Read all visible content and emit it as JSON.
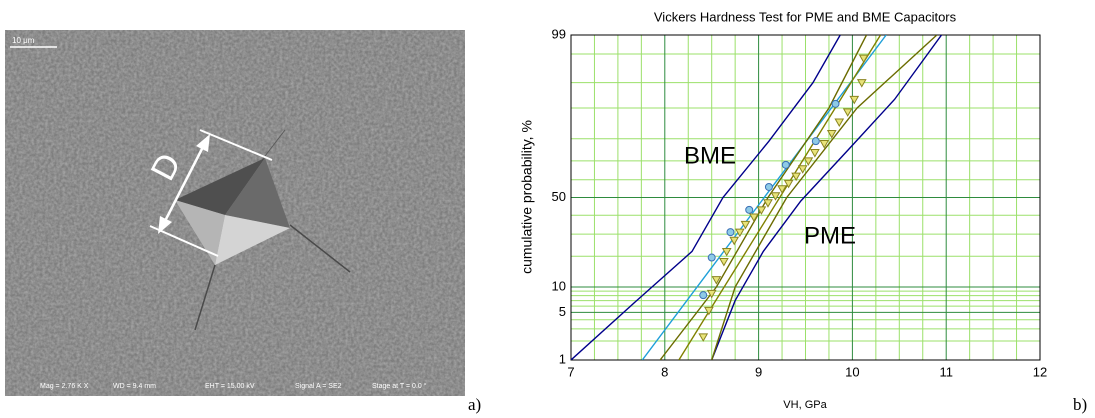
{
  "image": {
    "scale_bar": "10 μm",
    "info": [
      "Mag = 2.76 K X",
      "WD = 9.4 mm",
      "EHT = 15.00 kV",
      "Signal A = SE2",
      "Stage at T = 0.0 °"
    ],
    "dimension_label": "D",
    "panel_label": "a)"
  },
  "chart_data": {
    "type": "probability",
    "panel_label": "b)",
    "title": "Vickers Hardness Test for PME and BME Capacitors",
    "x_label": "VH, GPa",
    "y_label": "cumulative probability, %",
    "xlim": [
      7,
      12
    ],
    "xticks": [
      7,
      8,
      9,
      10,
      11,
      12
    ],
    "xminor": [
      7.25,
      7.5,
      7.75,
      8.25,
      8.5,
      8.75,
      9.25,
      9.5,
      9.75,
      10.25,
      10.5,
      10.75,
      11.25,
      11.5,
      11.75
    ],
    "ylim": [
      1,
      99
    ],
    "yticks": [
      1,
      5,
      10,
      50,
      99
    ],
    "yscale": "normal-probability",
    "yminor": [
      2,
      3,
      4,
      6,
      7,
      8,
      9,
      20,
      30,
      40,
      60,
      70,
      80,
      90,
      95,
      98
    ],
    "grid": true,
    "annotations": [
      "BME",
      "PME"
    ],
    "series": [
      {
        "marker": "none",
        "color": "#00008b",
        "x": [
          7.0,
          7.7,
          8.29,
          8.62,
          9.11,
          9.58,
          9.87
        ],
        "values": [
          1,
          7,
          22,
          50,
          79,
          95,
          99
        ]
      },
      {
        "marker": "none",
        "color": "#00008b",
        "x": [
          8.5,
          8.75,
          9.05,
          9.45,
          9.95,
          10.45,
          10.95
        ],
        "values": [
          1,
          7,
          22,
          48,
          75,
          92,
          99
        ]
      },
      {
        "marker": "none",
        "color": "#1e9fd8",
        "x": [
          7.76,
          10.36
        ],
        "values": [
          1,
          99
        ]
      },
      {
        "marker": "none",
        "color": "#808000",
        "x": [
          8.15,
          10.3
        ],
        "values": [
          1,
          99
        ]
      },
      {
        "marker": "none",
        "color": "#6b6b00",
        "x": [
          7.95,
          8.55,
          9.1,
          9.75,
          10.15
        ],
        "values": [
          1,
          10,
          50,
          90,
          99
        ]
      },
      {
        "marker": "none",
        "color": "#6b6b00",
        "x": [
          8.5,
          8.75,
          9.3,
          10.05,
          10.9
        ],
        "values": [
          1,
          10,
          50,
          90,
          99
        ]
      },
      {
        "marker": "circle",
        "color": "#8ecae6",
        "x": [
          8.41,
          8.5,
          8.7,
          8.9,
          9.11,
          9.29,
          9.61,
          9.82
        ],
        "values": [
          8.1,
          19.5,
          31,
          43,
          56,
          68,
          79,
          91
        ]
      },
      {
        "marker": "triangle",
        "color": "#e8e37a",
        "x": [
          8.41,
          8.47,
          8.5,
          8.55,
          8.63,
          8.66,
          8.74,
          8.8,
          8.86,
          8.95,
          9.03,
          9.1,
          9.18,
          9.25,
          9.32,
          9.4,
          9.47,
          9.53,
          9.6,
          9.7,
          9.78,
          9.86,
          9.95,
          10.02,
          10.1,
          10.12
        ],
        "values": [
          2.3,
          5.3,
          8.5,
          12,
          18,
          22,
          27,
          31,
          35,
          39,
          43,
          47,
          51,
          55,
          58,
          62,
          66,
          70,
          74,
          78,
          82,
          86,
          89,
          92,
          95,
          97.7
        ]
      }
    ]
  }
}
